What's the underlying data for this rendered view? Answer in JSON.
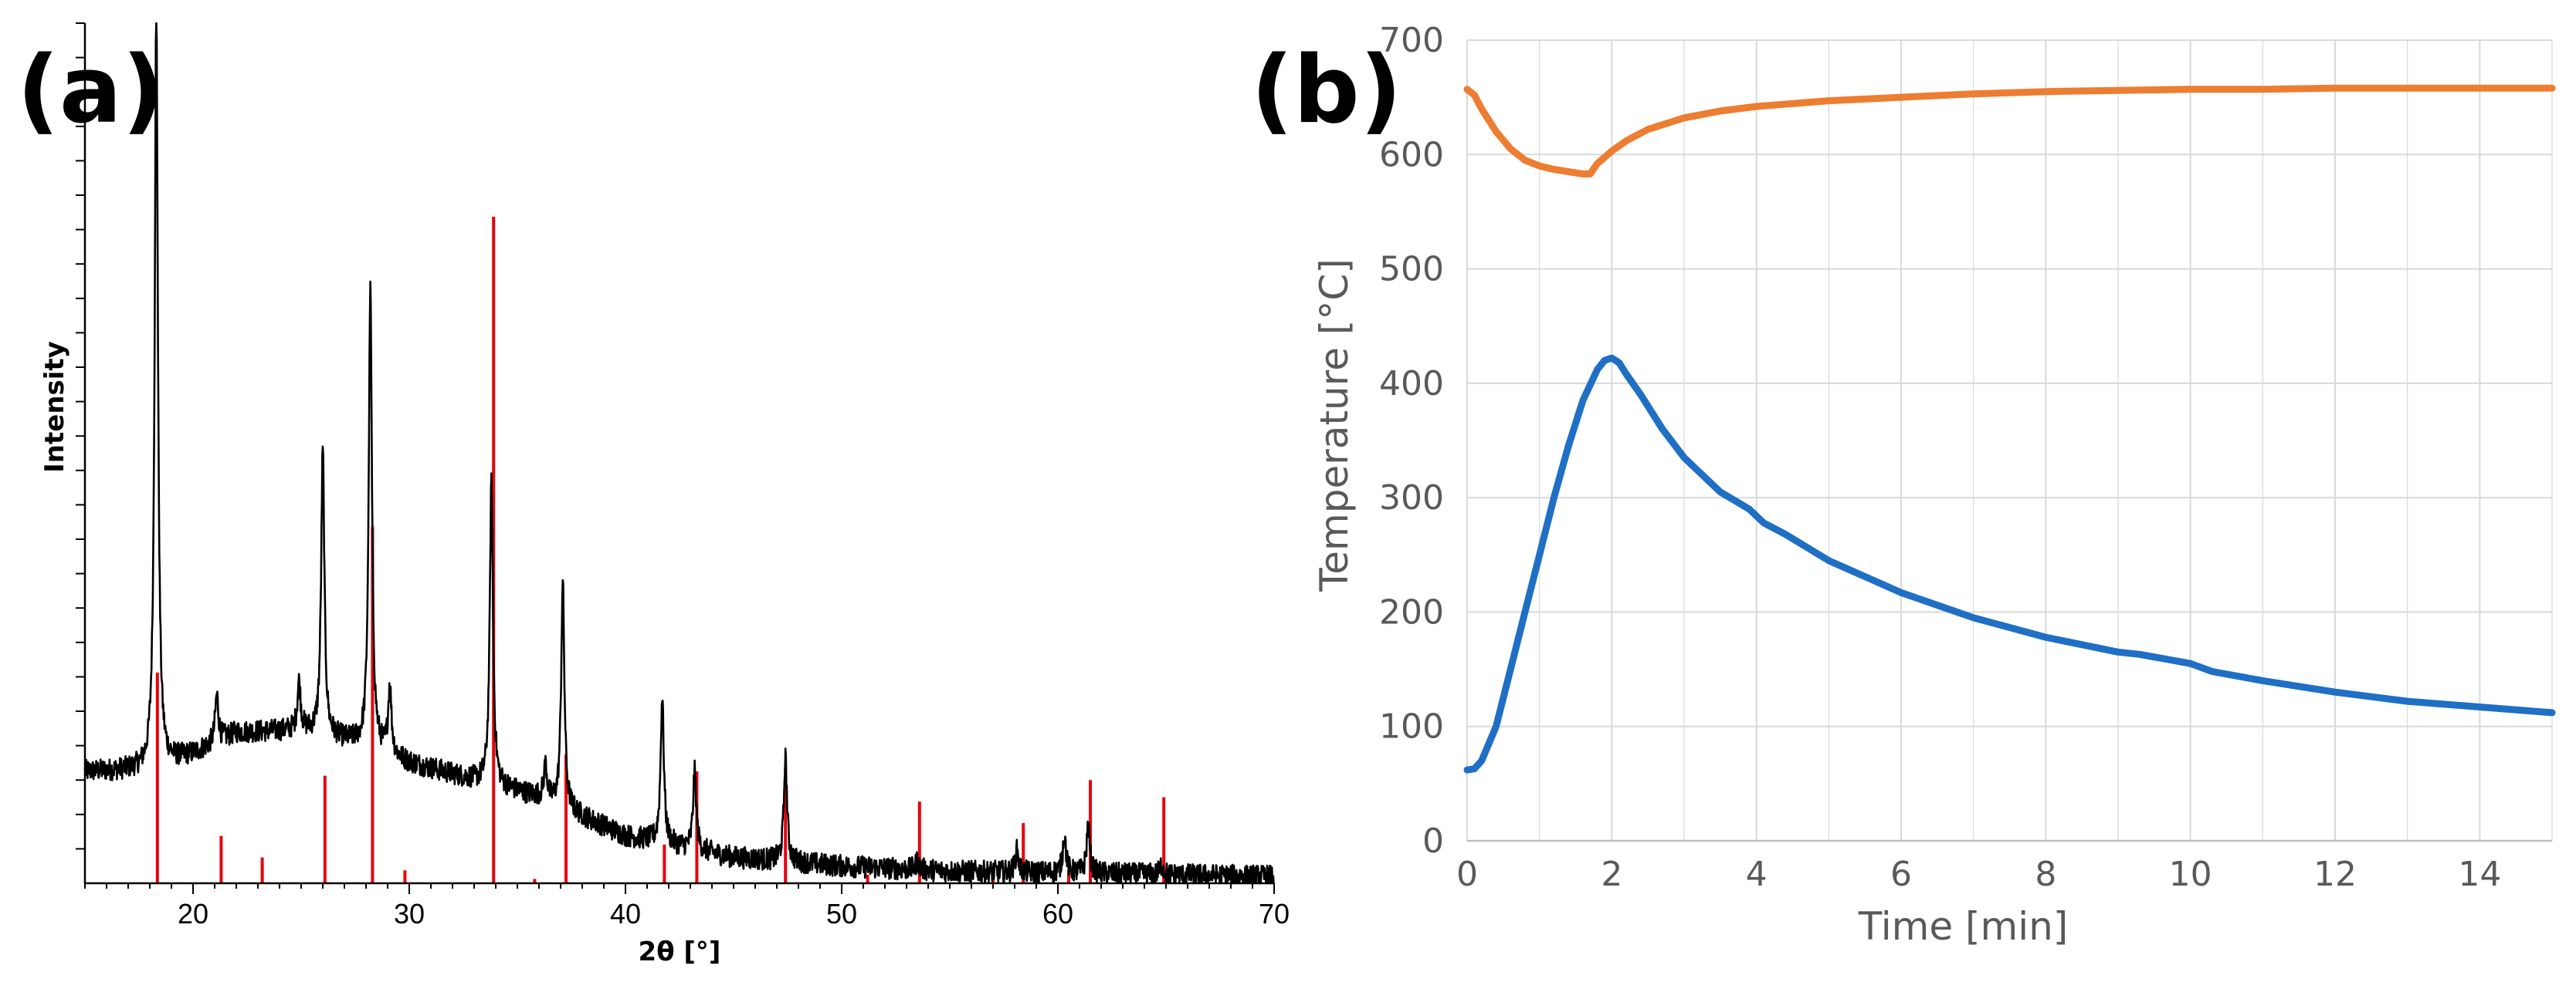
{
  "panels": {
    "a": {
      "label": "(a)"
    },
    "b": {
      "label": "(b)"
    }
  },
  "colors": {
    "xrd_pattern": "#000000",
    "reference_lines": "#e8000b",
    "temperature_upper": "#ed7d31",
    "temperature_lower": "#1f6fc5",
    "gridlines": "#d9d9d9",
    "axis_text_b": "#595959"
  },
  "chart_data": [
    {
      "panel": "(a)",
      "type": "line",
      "title": "",
      "xlabel": "2θ [°]",
      "ylabel": "Intensity",
      "xlim": [
        15,
        70
      ],
      "ylim": [
        0,
        1000
      ],
      "xticks": [
        20,
        30,
        40,
        50,
        60,
        70
      ],
      "y_tick_labels_shown": false,
      "grid": false,
      "legend": "none",
      "background": {
        "x": [
          15,
          18,
          20,
          22,
          25,
          28,
          30,
          33,
          36,
          40,
          45,
          50,
          55,
          60,
          65,
          70
        ],
        "y": [
          130,
          132,
          150,
          175,
          178,
          160,
          140,
          120,
          100,
          55,
          30,
          20,
          14,
          12,
          10,
          8
        ]
      },
      "peaks": {
        "x": [
          18.3,
          21.1,
          24.9,
          26.0,
          28.2,
          29.1,
          33.8,
          36.3,
          37.1,
          41.7,
          43.2,
          47.4,
          53.5,
          58.1,
          60.3,
          61.4,
          64.8
        ],
        "height": [
          880,
          55,
          55,
          330,
          530,
          80,
          350,
          40,
          260,
          170,
          90,
          120,
          10,
          25,
          45,
          55,
          12
        ]
      },
      "reference_sticks": {
        "x": [
          18.35,
          21.3,
          23.2,
          26.1,
          28.3,
          29.8,
          33.9,
          35.8,
          37.25,
          41.8,
          43.3,
          47.4,
          51.2,
          53.6,
          57.0,
          58.4,
          60.5,
          61.5,
          64.9
        ],
        "height": [
          245,
          55,
          30,
          125,
          415,
          15,
          775,
          5,
          150,
          45,
          130,
          135,
          10,
          95,
          20,
          70,
          15,
          120,
          100
        ]
      }
    },
    {
      "panel": "(b)",
      "type": "line",
      "title": "",
      "xlabel": "Time [min]",
      "ylabel": "Temperature [°C]",
      "xlim": [
        0,
        15
      ],
      "ylim": [
        0,
        700
      ],
      "xticks": [
        0,
        2,
        4,
        6,
        8,
        10,
        12,
        14
      ],
      "yticks": [
        0,
        100,
        200,
        300,
        400,
        500,
        600,
        700
      ],
      "grid": true,
      "legend": "none",
      "series": [
        {
          "color": "#ed7d31",
          "x": [
            0,
            0.1,
            0.2,
            0.4,
            0.6,
            0.8,
            1.0,
            1.2,
            1.4,
            1.6,
            1.7,
            1.8,
            2.0,
            2.2,
            2.5,
            3.0,
            3.5,
            4.0,
            5.0,
            6.0,
            7.0,
            8.0,
            9.0,
            10.0,
            11.0,
            12.0,
            13.0,
            14.0,
            15.0
          ],
          "y": [
            657,
            652,
            640,
            620,
            605,
            595,
            590,
            587,
            585,
            583,
            583,
            592,
            603,
            612,
            622,
            632,
            638,
            642,
            647,
            650,
            653,
            655,
            656,
            657,
            657,
            658,
            658,
            658,
            658
          ]
        },
        {
          "color": "#1f6fc5",
          "x": [
            0,
            0.1,
            0.2,
            0.4,
            0.6,
            0.8,
            1.0,
            1.2,
            1.4,
            1.6,
            1.8,
            1.9,
            2.0,
            2.1,
            2.2,
            2.4,
            2.7,
            3.0,
            3.5,
            3.9,
            4.1,
            4.4,
            5.0,
            6.0,
            7.0,
            8.0,
            9.0,
            9.3,
            10.0,
            10.3,
            11.0,
            12.0,
            13.0,
            14.0,
            15.0
          ],
          "y": [
            62,
            63,
            70,
            100,
            150,
            200,
            250,
            300,
            345,
            385,
            412,
            420,
            422,
            418,
            408,
            390,
            360,
            335,
            305,
            290,
            278,
            268,
            245,
            217,
            195,
            178,
            165,
            163,
            155,
            148,
            140,
            130,
            122,
            117,
            112
          ]
        }
      ]
    }
  ]
}
